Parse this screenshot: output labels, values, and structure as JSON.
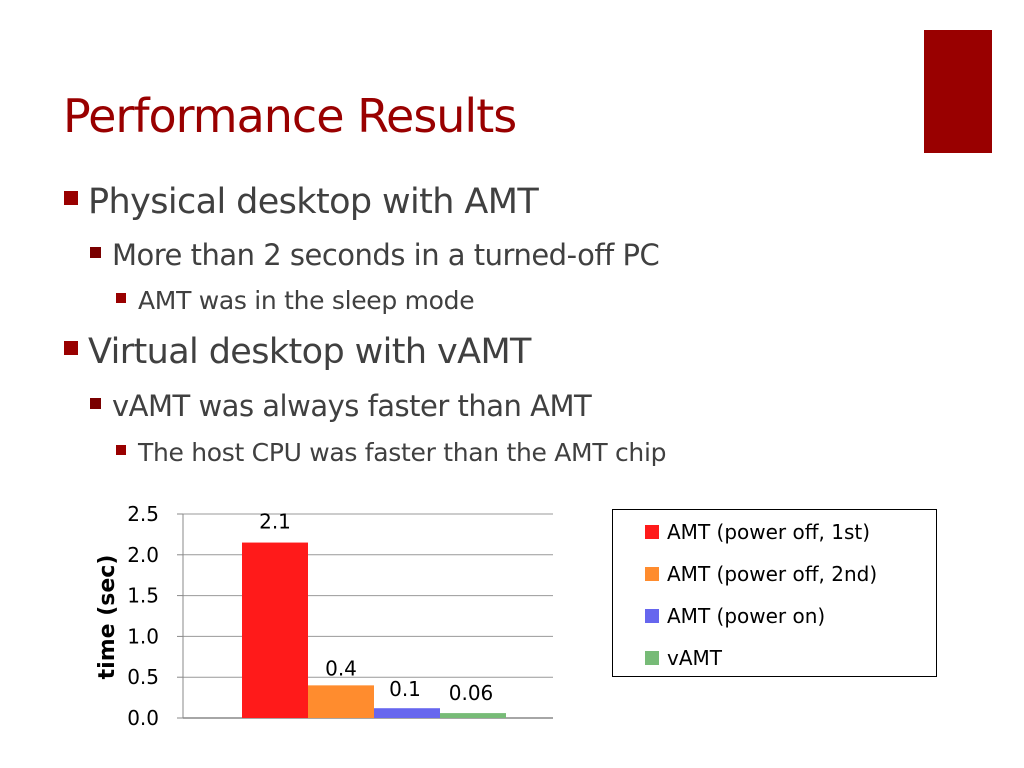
{
  "slide": {
    "title": "Performance Results",
    "accent_color": "#990000"
  },
  "bullets": [
    {
      "level": 1,
      "text": "Physical desktop with AMT"
    },
    {
      "level": 2,
      "text": "More than 2 seconds in a turned-off PC"
    },
    {
      "level": 3,
      "text": "AMT was in the sleep mode"
    },
    {
      "level": 1,
      "text": "Virtual desktop with vAMT"
    },
    {
      "level": 2,
      "text": "vAMT was always faster than AMT"
    },
    {
      "level": 3,
      "text": "The host CPU was faster than the AMT chip"
    }
  ],
  "chart_data": {
    "type": "bar",
    "title": "",
    "xlabel": "",
    "ylabel": "time (sec)",
    "ylim": [
      0,
      2.5
    ],
    "yticks": [
      "0.0",
      "0.5",
      "1.0",
      "1.5",
      "2.0",
      "2.5"
    ],
    "grid": true,
    "legend_position": "right",
    "series": [
      {
        "name": "AMT (power off, 1st)",
        "value": 2.15,
        "label": "2.1",
        "color": "#ff1a1a"
      },
      {
        "name": "AMT (power off, 2nd)",
        "value": 0.4,
        "label": "0.4",
        "color": "#ff8c2e"
      },
      {
        "name": "AMT (power on)",
        "value": 0.12,
        "label": "0.1",
        "color": "#6666ee"
      },
      {
        "name": "vAMT",
        "value": 0.06,
        "label": "0.06",
        "color": "#77bb77"
      }
    ]
  }
}
